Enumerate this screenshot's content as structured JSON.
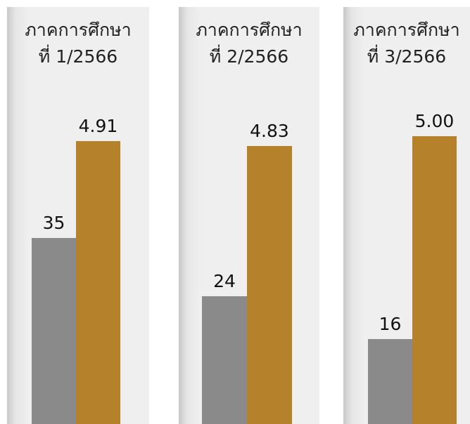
{
  "chart_data": {
    "type": "bar",
    "categories": [
      "ภาคการศึกษาที่ 1/2566",
      "ภาคการศึกษาที่ 2/2566",
      "ภาคการศึกษาที่ 3/2566"
    ],
    "panels": [
      {
        "title_line1": "ภาคการศึกษา",
        "title_line2": "ที่ 1/2566",
        "values": [
          35,
          4.91
        ],
        "labels": [
          "35",
          "4.91"
        ]
      },
      {
        "title_line1": "ภาคการศึกษา",
        "title_line2": "ที่ 2/2566",
        "values": [
          24,
          4.83
        ],
        "labels": [
          "24",
          "4.83"
        ]
      },
      {
        "title_line1": "ภาคการศึกษา",
        "title_line2": "ที่ 3/2566",
        "values": [
          16,
          5.0
        ],
        "labels": [
          "16",
          "5.00"
        ]
      }
    ],
    "series": [
      {
        "values": [
          35,
          24,
          16
        ],
        "color": "#8a8a8a"
      },
      {
        "values": [
          4.91,
          4.83,
          5.0
        ],
        "color": "#b5822b"
      }
    ],
    "title": "",
    "xlabel": "",
    "ylabel": "",
    "grid": false
  }
}
